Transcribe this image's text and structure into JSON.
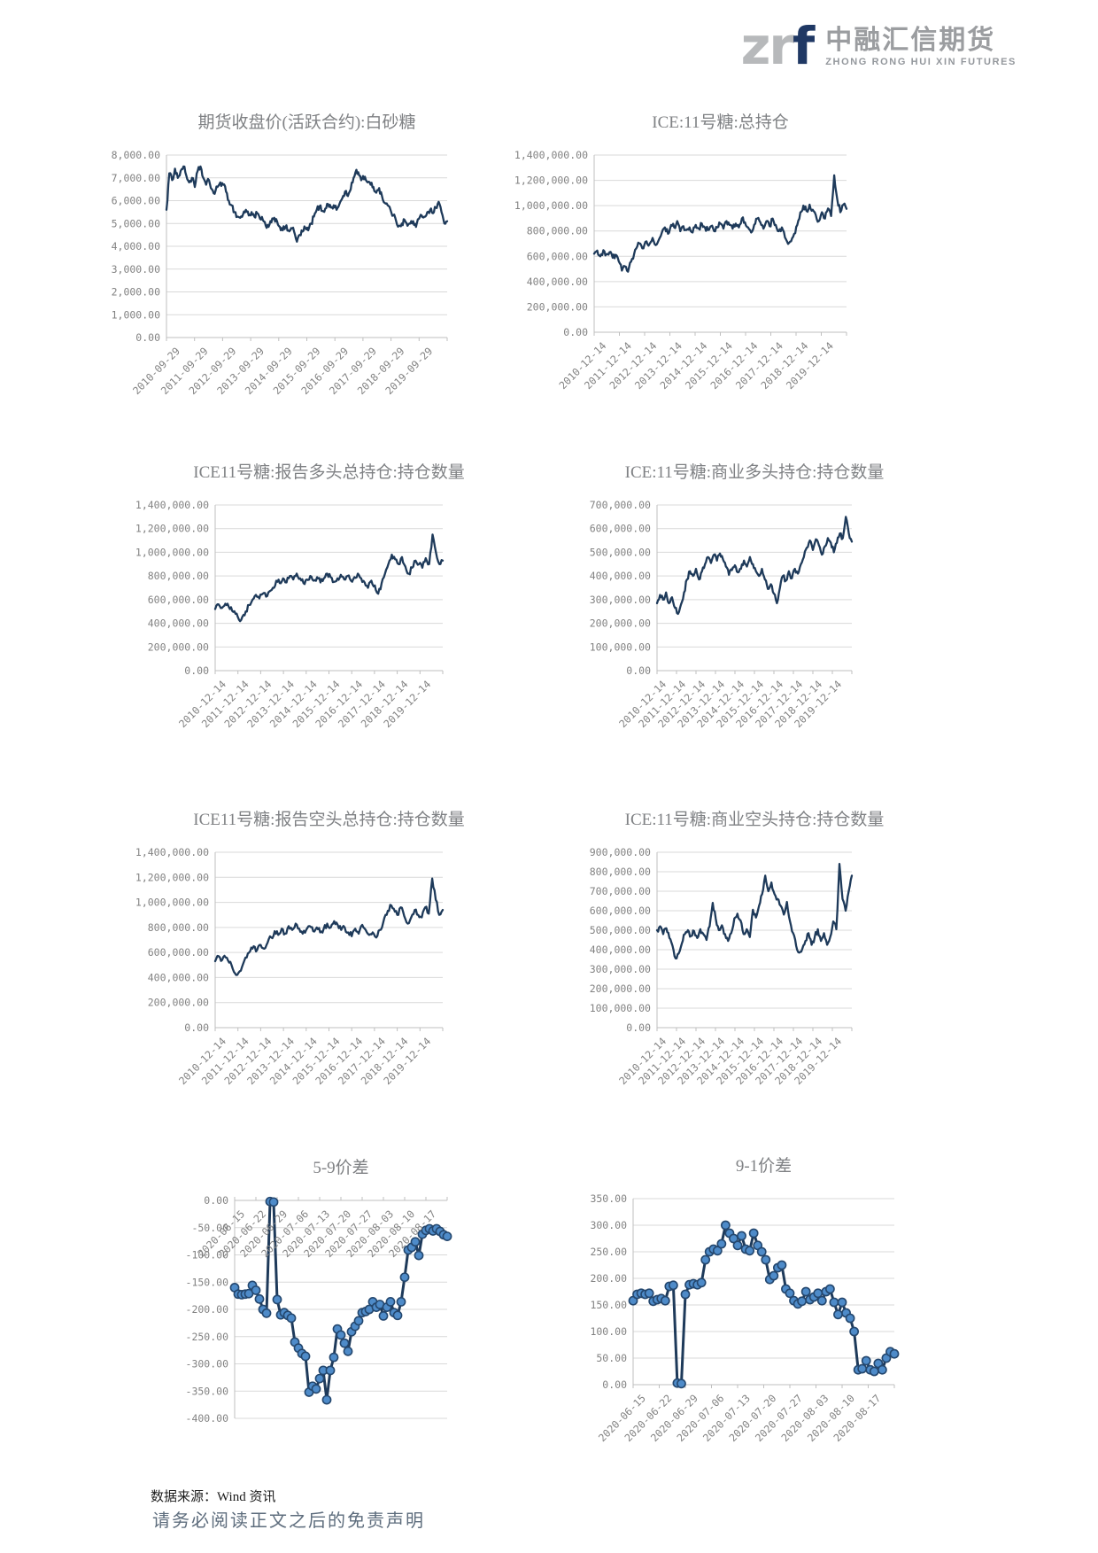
{
  "header": {
    "logo": {
      "zr": "zr",
      "f": "f",
      "cn_name": "中融汇信期货",
      "en_name": "ZHONG RONG HUI XIN FUTURES",
      "accent_color": "#1f3864",
      "gray_color": "#b7b9bb"
    }
  },
  "footer": {
    "source": "数据来源：Wind 资讯",
    "disclaimer": "请务必阅读正文之后的免责声明"
  },
  "style": {
    "line_color": "#1e3a5a",
    "marker_fill": "#4e8bc9",
    "marker_stroke": "#24476e",
    "grid_color": "#d9d9d9",
    "axis_color": "#bfbfbf",
    "tick_label_color": "#828282",
    "title_color": "#7f8184"
  },
  "chart_data": [
    {
      "type": "line",
      "title": "期货收盘价(活跃合约):白砂糖",
      "ylim": [
        0,
        8000
      ],
      "y_step": 1000,
      "grid": true,
      "legend": "none",
      "markers": false,
      "x_label_position": "bottom",
      "x_labels": [
        "2010-09-29",
        "2011-09-29",
        "2012-09-29",
        "2013-09-29",
        "2014-09-29",
        "2015-09-29",
        "2016-09-29",
        "2017-09-29",
        "2018-09-29",
        "2019-09-29"
      ],
      "values": [
        5600,
        7200,
        6900,
        7400,
        7000,
        7300,
        7500,
        7100,
        6800,
        7000,
        6600,
        7300,
        7500,
        7000,
        6700,
        6900,
        6500,
        6300,
        6600,
        6800,
        6700,
        6400,
        6000,
        5800,
        5500,
        5300,
        5250,
        5400,
        5600,
        5350,
        5500,
        5300,
        5450,
        5200,
        5150,
        4900,
        4850,
        5050,
        5250,
        5100,
        4850,
        4700,
        4850,
        4700,
        4800,
        4650,
        4200,
        4500,
        4650,
        4800,
        4700,
        5000,
        5300,
        5600,
        5750,
        5550,
        5650,
        5850,
        5700,
        5800,
        5600,
        5850,
        6100,
        6400,
        6200,
        6500,
        7000,
        7350,
        7100,
        6950,
        7050,
        6800,
        6700,
        6600,
        6350,
        6550,
        6200,
        5900,
        5800,
        5600,
        5350,
        5100,
        4900,
        5000,
        5150,
        4900,
        5000,
        5100,
        4850,
        5200,
        5350,
        5300,
        5500,
        5600,
        5450,
        5700,
        5950,
        5500,
        5000,
        5100
      ]
    },
    {
      "type": "line",
      "title": "ICE:11号糖:总持仓",
      "ylim": [
        0,
        1400000
      ],
      "y_step": 200000,
      "grid": true,
      "legend": "none",
      "markers": false,
      "x_label_position": "bottom",
      "x_labels": [
        "2010-12-14",
        "2011-12-14",
        "2012-12-14",
        "2013-12-14",
        "2014-12-14",
        "2015-12-14",
        "2016-12-14",
        "2017-12-14",
        "2018-12-14",
        "2019-12-14"
      ],
      "values": [
        620000,
        645000,
        600000,
        648000,
        615000,
        633000,
        588000,
        612000,
        560000,
        487000,
        520000,
        478000,
        558000,
        620000,
        678000,
        700000,
        662000,
        718000,
        698000,
        745000,
        688000,
        730000,
        788000,
        828000,
        778000,
        848000,
        828000,
        878000,
        798000,
        838000,
        808000,
        828000,
        788000,
        848000,
        818000,
        858000,
        828000,
        808000,
        838000,
        798000,
        828000,
        858000,
        818000,
        878000,
        848000,
        818000,
        858000,
        828000,
        898000,
        868000,
        828000,
        788000,
        848000,
        898000,
        868000,
        818000,
        878000,
        838000,
        898000,
        848000,
        798000,
        828000,
        748000,
        698000,
        718000,
        778000,
        848000,
        948000,
        1000000,
        958000,
        1008000,
        968000,
        928000,
        878000,
        948000,
        898000,
        978000,
        918000,
        1240000,
        1048000,
        948000,
        1008000,
        975000
      ]
    },
    {
      "type": "line",
      "title": "ICE11号糖:报告多头总持仓:持仓数量",
      "ylim": [
        0,
        1400000
      ],
      "y_step": 200000,
      "grid": true,
      "legend": "none",
      "markers": false,
      "x_label_position": "bottom",
      "x_labels": [
        "2010-12-14",
        "2011-12-14",
        "2012-12-14",
        "2013-12-14",
        "2014-12-14",
        "2015-12-14",
        "2016-12-14",
        "2017-12-14",
        "2018-12-14",
        "2019-12-14"
      ],
      "values": [
        520000,
        560000,
        530000,
        565000,
        540000,
        505000,
        480000,
        430000,
        455000,
        500000,
        555000,
        600000,
        640000,
        610000,
        650000,
        625000,
        670000,
        700000,
        760000,
        740000,
        780000,
        745000,
        800000,
        770000,
        820000,
        780000,
        740000,
        770000,
        800000,
        760000,
        790000,
        745000,
        780000,
        820000,
        790000,
        750000,
        780000,
        810000,
        770000,
        800000,
        760000,
        790000,
        820000,
        780000,
        745000,
        700000,
        760000,
        720000,
        650000,
        740000,
        820000,
        900000,
        980000,
        940000,
        900000,
        960000,
        880000,
        820000,
        870000,
        930000,
        900000,
        870000,
        950000,
        900000,
        1150000,
        1000000,
        900000,
        930000
      ]
    },
    {
      "type": "line",
      "title": "ICE:11号糖:商业多头持仓:持仓数量",
      "ylim": [
        0,
        700000
      ],
      "y_step": 100000,
      "grid": true,
      "legend": "none",
      "markers": false,
      "x_label_position": "bottom",
      "x_labels": [
        "2010-12-14",
        "2011-12-14",
        "2012-12-14",
        "2013-12-14",
        "2014-12-14",
        "2015-12-14",
        "2016-12-14",
        "2017-12-14",
        "2018-12-14",
        "2019-12-14"
      ],
      "values": [
        285000,
        320000,
        300000,
        330000,
        285000,
        310000,
        265000,
        240000,
        280000,
        330000,
        385000,
        420000,
        400000,
        430000,
        385000,
        420000,
        450000,
        480000,
        455000,
        490000,
        465000,
        495000,
        470000,
        440000,
        405000,
        425000,
        445000,
        415000,
        430000,
        465000,
        440000,
        480000,
        450000,
        420000,
        400000,
        430000,
        385000,
        345000,
        365000,
        325000,
        285000,
        350000,
        400000,
        380000,
        420000,
        390000,
        430000,
        410000,
        450000,
        480000,
        520000,
        550000,
        510000,
        555000,
        530000,
        490000,
        525000,
        560000,
        540000,
        500000,
        540000,
        580000,
        560000,
        650000,
        580000,
        545000
      ]
    },
    {
      "type": "line",
      "title": "ICE11号糖:报告空头总持仓:持仓数量",
      "ylim": [
        0,
        1400000
      ],
      "y_step": 200000,
      "grid": true,
      "legend": "none",
      "markers": false,
      "x_label_position": "bottom",
      "x_labels": [
        "2010-12-14",
        "2011-12-14",
        "2012-12-14",
        "2013-12-14",
        "2014-12-14",
        "2015-12-14",
        "2016-12-14",
        "2017-12-14",
        "2018-12-14",
        "2019-12-14"
      ],
      "values": [
        530000,
        570000,
        540000,
        560000,
        520000,
        470000,
        420000,
        450000,
        510000,
        560000,
        610000,
        650000,
        620000,
        660000,
        630000,
        680000,
        720000,
        770000,
        740000,
        790000,
        750000,
        810000,
        780000,
        830000,
        790000,
        750000,
        780000,
        810000,
        770000,
        800000,
        760000,
        790000,
        830000,
        800000,
        850000,
        820000,
        780000,
        800000,
        760000,
        730000,
        790000,
        750000,
        820000,
        780000,
        740000,
        760000,
        720000,
        780000,
        840000,
        900000,
        980000,
        950000,
        900000,
        960000,
        890000,
        830000,
        880000,
        940000,
        900000,
        880000,
        960000,
        910000,
        1190000,
        1020000,
        900000,
        940000
      ]
    },
    {
      "type": "line",
      "title": "ICE:11号糖:商业空头持仓:持仓数量",
      "ylim": [
        0,
        900000
      ],
      "y_step": 100000,
      "grid": true,
      "legend": "none",
      "markers": false,
      "x_label_position": "bottom",
      "x_labels": [
        "2010-12-14",
        "2011-12-14",
        "2012-12-14",
        "2013-12-14",
        "2014-12-14",
        "2015-12-14",
        "2016-12-14",
        "2017-12-14",
        "2018-12-14",
        "2019-12-14"
      ],
      "values": [
        500000,
        520000,
        480000,
        510000,
        460000,
        420000,
        355000,
        380000,
        430000,
        480000,
        500000,
        470000,
        495000,
        460000,
        505000,
        480000,
        450000,
        520000,
        640000,
        560000,
        500000,
        525000,
        480000,
        445000,
        485000,
        560000,
        585000,
        550000,
        480000,
        505000,
        465000,
        605000,
        565000,
        625000,
        685000,
        780000,
        700000,
        745000,
        685000,
        660000,
        625000,
        580000,
        645000,
        545000,
        485000,
        420000,
        385000,
        405000,
        445000,
        485000,
        425000,
        465000,
        505000,
        445000,
        485000,
        425000,
        465000,
        545000,
        505000,
        840000,
        660000,
        600000,
        700000,
        780000
      ]
    },
    {
      "type": "line",
      "title": "5-9价差",
      "ylim": [
        -400,
        0
      ],
      "y_step": 50,
      "grid": true,
      "legend": "none",
      "markers": true,
      "x_label_position": "top",
      "x_labels": [
        "2020-06-15",
        "2020-06-22",
        "2020-06-29",
        "2020-07-06",
        "2020-07-13",
        "2020-07-20",
        "2020-07-27",
        "2020-08-03",
        "2020-08-10",
        "2020-08-17"
      ],
      "values": [
        -160,
        -172,
        -173,
        -172,
        -171,
        -156,
        -165,
        -181,
        -200,
        -207,
        -2,
        -3,
        -182,
        -210,
        -206,
        -211,
        -216,
        -260,
        -271,
        -281,
        -286,
        -352,
        -341,
        -346,
        -327,
        -312,
        -366,
        -312,
        -288,
        -236,
        -247,
        -262,
        -277,
        -241,
        -231,
        -221,
        -206,
        -204,
        -200,
        -186,
        -196,
        -191,
        -212,
        -196,
        -186,
        -206,
        -211,
        -186,
        -141,
        -91,
        -86,
        -76,
        -101,
        -62,
        -55,
        -52,
        -56,
        -52,
        -57,
        -63,
        -66
      ]
    },
    {
      "type": "line",
      "title": "9-1价差",
      "ylim": [
        0,
        350
      ],
      "y_step": 50,
      "grid": true,
      "legend": "none",
      "markers": true,
      "x_label_position": "bottom",
      "x_labels": [
        "2020-06-15",
        "2020-06-22",
        "2020-06-29",
        "2020-07-06",
        "2020-07-13",
        "2020-07-20",
        "2020-07-27",
        "2020-08-03",
        "2020-08-10",
        "2020-08-17"
      ],
      "values": [
        158,
        170,
        172,
        170,
        172,
        157,
        160,
        162,
        158,
        185,
        187,
        3,
        2,
        170,
        188,
        190,
        188,
        192,
        235,
        250,
        255,
        252,
        265,
        300,
        285,
        275,
        262,
        280,
        255,
        252,
        285,
        262,
        250,
        235,
        198,
        205,
        220,
        225,
        180,
        172,
        158,
        152,
        157,
        175,
        160,
        165,
        172,
        158,
        175,
        180,
        155,
        132,
        155,
        135,
        125,
        100,
        28,
        30,
        45,
        28,
        25,
        40,
        28,
        50,
        62,
        58
      ]
    }
  ]
}
